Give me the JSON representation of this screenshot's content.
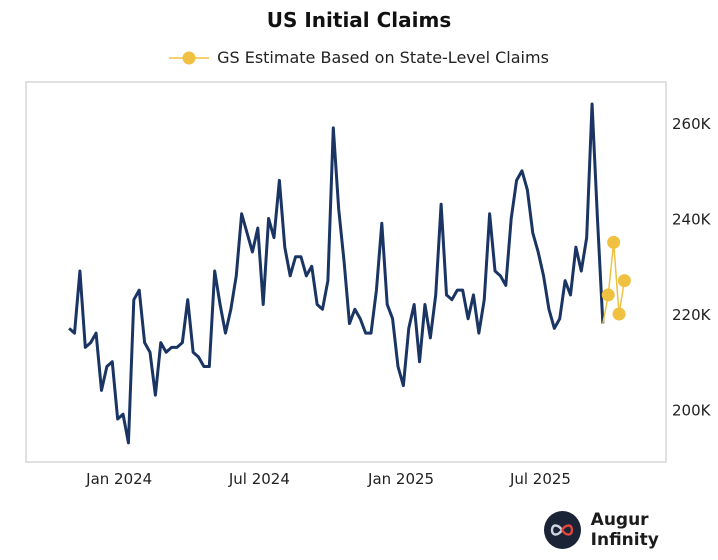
{
  "chart_data": {
    "type": "line",
    "title": "US Initial Claims",
    "xlabel": "",
    "ylabel": "",
    "xlim": [
      "2023-09-02",
      "2025-12-11"
    ],
    "ylim": [
      189000,
      268600
    ],
    "y_ticks": [
      200000,
      220000,
      240000,
      260000
    ],
    "y_tick_labels": [
      "200K",
      "220K",
      "240K",
      "260K"
    ],
    "y_axis_side": "right",
    "x_ticks": [
      "2024-01-01",
      "2024-07-01",
      "2025-01-01",
      "2025-07-01"
    ],
    "x_tick_labels": [
      "Jan 2024",
      "Jul 2024",
      "Jan 2025",
      "Jul 2025"
    ],
    "grid": false,
    "legend_placement": "top-center",
    "series": [
      {
        "color": "#1a3563",
        "marker": "none",
        "x": [
          "2023-10-28",
          "2023-11-04",
          "2023-11-11",
          "2023-11-18",
          "2023-11-25",
          "2023-12-02",
          "2023-12-09",
          "2023-12-16",
          "2023-12-23",
          "2023-12-30",
          "2024-01-06",
          "2024-01-13",
          "2024-01-20",
          "2024-01-27",
          "2024-02-03",
          "2024-02-10",
          "2024-02-17",
          "2024-02-24",
          "2024-03-02",
          "2024-03-09",
          "2024-03-16",
          "2024-03-23",
          "2024-03-30",
          "2024-04-06",
          "2024-04-13",
          "2024-04-20",
          "2024-04-27",
          "2024-05-04",
          "2024-05-11",
          "2024-05-18",
          "2024-05-25",
          "2024-06-01",
          "2024-06-08",
          "2024-06-15",
          "2024-06-22",
          "2024-06-29",
          "2024-07-06",
          "2024-07-13",
          "2024-07-20",
          "2024-07-27",
          "2024-08-03",
          "2024-08-10",
          "2024-08-17",
          "2024-08-24",
          "2024-08-31",
          "2024-09-07",
          "2024-09-14",
          "2024-09-21",
          "2024-09-28",
          "2024-10-05",
          "2024-10-12",
          "2024-10-19",
          "2024-10-26",
          "2024-11-02",
          "2024-11-09",
          "2024-11-16",
          "2024-11-23",
          "2024-11-30",
          "2024-12-07",
          "2024-12-14",
          "2024-12-21",
          "2024-12-28",
          "2025-01-04",
          "2025-01-11",
          "2025-01-18",
          "2025-01-25",
          "2025-02-01",
          "2025-02-08",
          "2025-02-15",
          "2025-02-22",
          "2025-03-01",
          "2025-03-08",
          "2025-03-15",
          "2025-03-22",
          "2025-03-29",
          "2025-04-05",
          "2025-04-12",
          "2025-04-19",
          "2025-04-26",
          "2025-05-03",
          "2025-05-10",
          "2025-05-17",
          "2025-05-24",
          "2025-05-31",
          "2025-06-07",
          "2025-06-14",
          "2025-06-21",
          "2025-06-28",
          "2025-07-05",
          "2025-07-12",
          "2025-07-19",
          "2025-07-26",
          "2025-08-02",
          "2025-08-09",
          "2025-08-16",
          "2025-08-23",
          "2025-08-30",
          "2025-09-06",
          "2025-09-13",
          "2025-09-20"
        ],
        "values": [
          217000,
          216000,
          229000,
          213000,
          214000,
          216000,
          204000,
          209000,
          210000,
          198000,
          199000,
          193000,
          223000,
          225000,
          214000,
          212000,
          203000,
          214000,
          212000,
          213000,
          213000,
          214000,
          223000,
          212000,
          211000,
          209000,
          209000,
          229000,
          222000,
          216000,
          221000,
          228000,
          241000,
          237000,
          233000,
          238000,
          222000,
          240000,
          236000,
          248000,
          234000,
          228000,
          232000,
          232000,
          228000,
          230000,
          222000,
          221000,
          227000,
          259000,
          242000,
          231000,
          218000,
          221000,
          219000,
          216000,
          216000,
          225000,
          239000,
          222000,
          219000,
          209000,
          205000,
          217000,
          222000,
          210000,
          222000,
          215000,
          224000,
          243000,
          224000,
          223000,
          225000,
          225000,
          219000,
          224000,
          216000,
          223000,
          241000,
          229000,
          228000,
          226000,
          240000,
          248000,
          250000,
          246000,
          237000,
          233000,
          228000,
          221000,
          217000,
          219000,
          227000,
          224000,
          234000,
          229000,
          236000,
          264000,
          240000,
          218000
        ]
      },
      {
        "name": "GS Estimate Based on State-Level Claims",
        "color": "#f0c040",
        "marker": "circle",
        "x": [
          "2025-09-27",
          "2025-10-04",
          "2025-10-11",
          "2025-10-18"
        ],
        "values": [
          224000,
          235000,
          220000,
          227000
        ]
      }
    ]
  },
  "branding": {
    "name": "Augur Infinity",
    "logo_icon": "infinity-icon"
  }
}
